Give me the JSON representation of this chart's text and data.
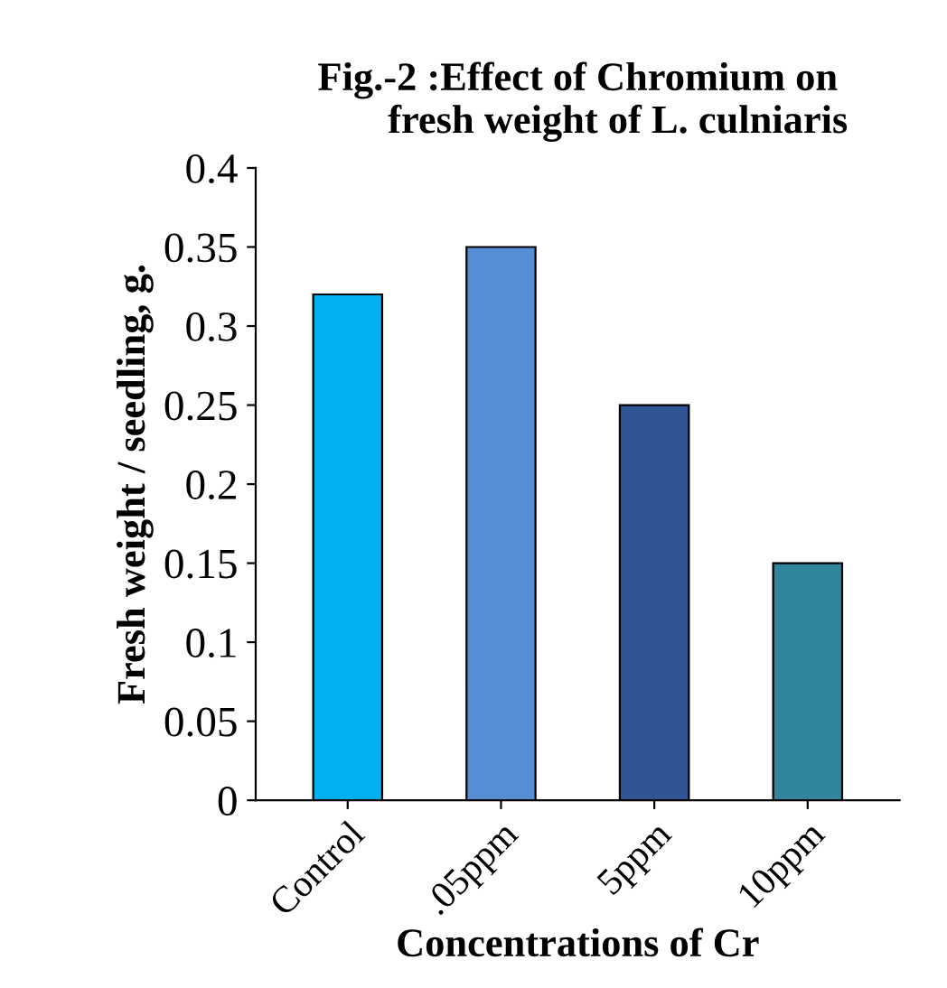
{
  "chart_data": {
    "type": "bar",
    "title": "Fig.-2 :Effect of Chromium on\n        fresh weight of L. culniaris",
    "xlabel": "Concentrations of Cr",
    "ylabel": "Fresh weight / seedling, g.",
    "categories": [
      "Control",
      ".05ppm",
      "5ppm",
      "10ppm"
    ],
    "values": [
      0.32,
      0.35,
      0.25,
      0.15
    ],
    "colors": [
      "#00b0f0",
      "#558ed5",
      "#2f5597",
      "#31859c"
    ],
    "ylim": [
      0,
      0.4
    ],
    "yticks": [
      0,
      0.05,
      0.1,
      0.15,
      0.2,
      0.25,
      0.3,
      0.35,
      0.4
    ],
    "grid": false,
    "legend": false
  }
}
